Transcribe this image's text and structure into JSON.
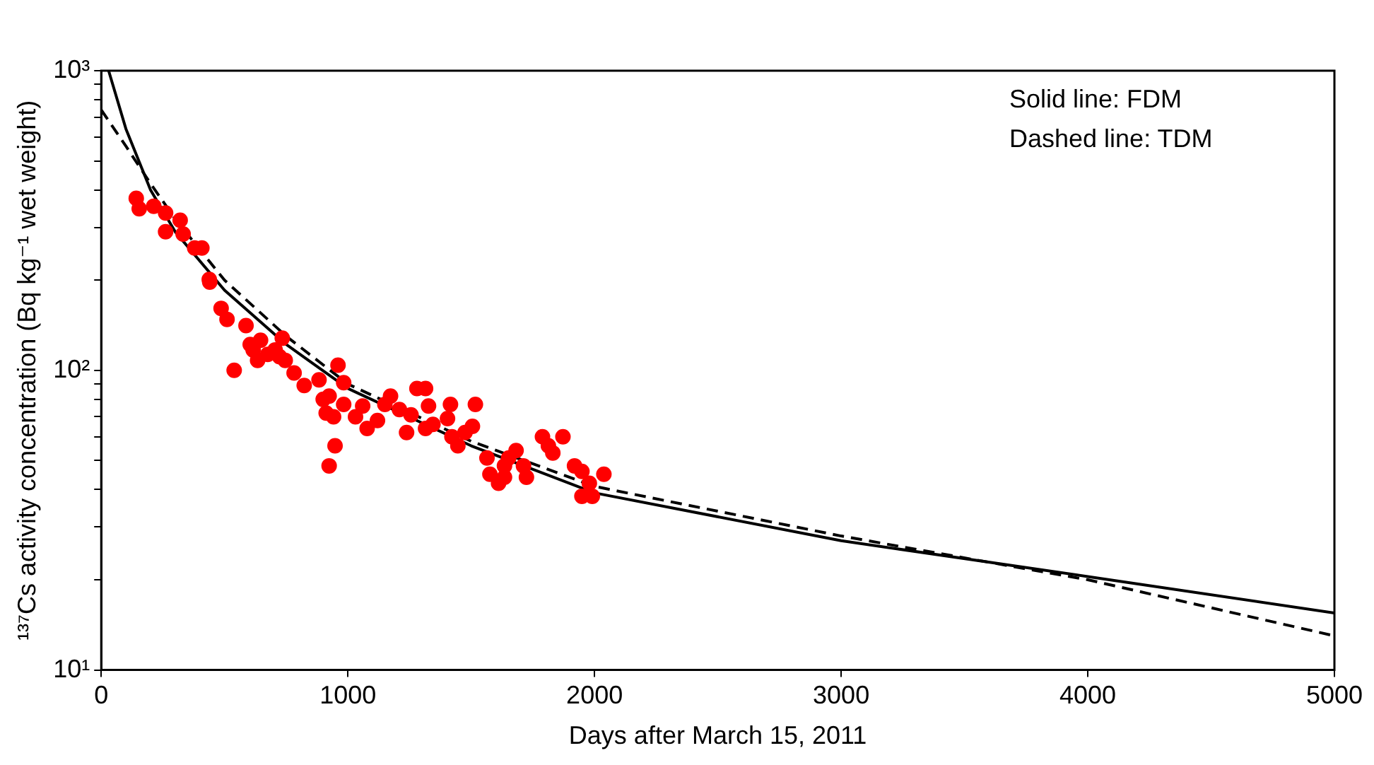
{
  "chart_data": {
    "type": "scatter",
    "xlabel": "Days after March 15, 2011",
    "ylabel": "¹³⁷Cs activity concentration (Bq kg⁻¹ wet weight)",
    "annotations": [
      "Solid line: FDM",
      "Dashed line: TDM"
    ],
    "log": "y",
    "grid": false,
    "legend": false,
    "xlim": [
      0,
      5000
    ],
    "xticks": [
      0,
      1000,
      2000,
      3000,
      4000,
      5000
    ],
    "ylim": [
      10,
      1000
    ],
    "yticks": [
      {
        "value": 10,
        "label": "10¹"
      },
      {
        "value": 20,
        "label": null
      },
      {
        "value": 30,
        "label": null
      },
      {
        "value": 40,
        "label": null
      },
      {
        "value": 50,
        "label": null
      },
      {
        "value": 60,
        "label": null
      },
      {
        "value": 70,
        "label": null
      },
      {
        "value": 80,
        "label": null
      },
      {
        "value": 90,
        "label": null
      },
      {
        "value": 100,
        "label": "10²"
      },
      {
        "value": 200,
        "label": null
      },
      {
        "value": 300,
        "label": null
      },
      {
        "value": 400,
        "label": null
      },
      {
        "value": 500,
        "label": null
      },
      {
        "value": 600,
        "label": null
      },
      {
        "value": 700,
        "label": null
      },
      {
        "value": 800,
        "label": null
      },
      {
        "value": 900,
        "label": null
      },
      {
        "value": 1000,
        "label": "10³"
      }
    ],
    "series": [
      {
        "marker": "circle",
        "color": "#ff0000",
        "x": [
          142,
          154,
          213,
          261,
          320,
          332,
          261,
          379,
          408,
          438,
          440,
          486,
          510,
          539,
          587,
          604,
          616,
          646,
          634,
          675,
          705,
          734,
          746,
          723,
          782,
          823,
          883,
          900,
          924,
          912,
          942,
          948,
          924,
          960,
          983,
          983,
          1031,
          1060,
          1078,
          1120,
          1150,
          1173,
          1209,
          1238,
          1256,
          1280,
          1315,
          1327,
          1315,
          1345,
          1416,
          1404,
          1422,
          1446,
          1475,
          1517,
          1505,
          1564,
          1576,
          1611,
          1635,
          1635,
          1652,
          1682,
          1712,
          1724,
          1789,
          1813,
          1831,
          1872,
          1919,
          1949,
          1949,
          1991,
          1979,
          2038
        ],
        "values": [
          375,
          346,
          353,
          335,
          317,
          285,
          290,
          256,
          256,
          201,
          197,
          161,
          148,
          100,
          141,
          122,
          117,
          126,
          108,
          113,
          117,
          128,
          108,
          111,
          98,
          89,
          93,
          80,
          82,
          72,
          70,
          56,
          48,
          104,
          91,
          77,
          70,
          76,
          64,
          68,
          77,
          82,
          74,
          62,
          71,
          87,
          87,
          76,
          64,
          66,
          77,
          69,
          60,
          56,
          62,
          77,
          65,
          51,
          45,
          42,
          44,
          48,
          51,
          54,
          48,
          44,
          60,
          56,
          53,
          60,
          48,
          46,
          38,
          38,
          42,
          45
        ]
      },
      {
        "type": "line",
        "marker": "none",
        "line_style": "solid",
        "color": "#000000",
        "x": [
          30,
          100,
          200,
          300,
          500,
          750,
          1000,
          1500,
          2000,
          3000,
          4000,
          5000
        ],
        "values": [
          1000,
          640,
          400,
          290,
          185,
          122,
          87,
          56,
          39,
          27,
          20.5,
          15.5
        ]
      },
      {
        "type": "line",
        "marker": "none",
        "line_style": "dashed",
        "color": "#000000",
        "x": [
          0,
          100,
          200,
          300,
          500,
          750,
          1000,
          1500,
          2000,
          3000,
          4000,
          5000
        ],
        "values": [
          740,
          560,
          420,
          320,
          200,
          130,
          90,
          58,
          41,
          28,
          20,
          13
        ]
      }
    ]
  }
}
